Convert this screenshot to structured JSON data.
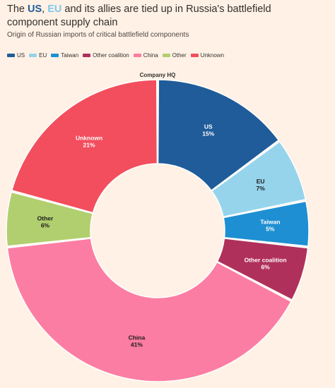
{
  "header": {
    "title_prefix": "The ",
    "title_us": "US",
    "title_sep": ", ",
    "title_eu": "EU",
    "title_suffix": " and its allies are tied up in Russia's battlefield component supply chain",
    "subtitle": "Origin of Russian imports of critical battlefield components"
  },
  "colors": {
    "title_us": "#1F5C99",
    "title_eu": "#7FC8E8"
  },
  "chart_data": {
    "type": "pie",
    "variant": "donut",
    "title": "The US, EU and its allies are tied up in Russia's battlefield component supply chain",
    "subtitle": "Origin of Russian imports of critical battlefield components",
    "annotation": "Company HQ",
    "legend_position": "top-left",
    "slices": [
      {
        "name": "US",
        "value": 15,
        "label": "15%",
        "color": "#1F5C99",
        "label_dark": false
      },
      {
        "name": "EU",
        "value": 7,
        "label": "7%",
        "color": "#96D4EC",
        "label_dark": true
      },
      {
        "name": "Taiwan",
        "value": 5,
        "label": "5%",
        "color": "#1E8FD2",
        "label_dark": false
      },
      {
        "name": "Other coalition",
        "value": 6,
        "label": "6%",
        "color": "#B0305C",
        "label_dark": false
      },
      {
        "name": "China",
        "value": 41,
        "label": "41%",
        "color": "#FC7DA3",
        "label_dark": true
      },
      {
        "name": "Other",
        "value": 6,
        "label": "6%",
        "color": "#B1CF6E",
        "label_dark": true
      },
      {
        "name": "Unknown",
        "value": 21,
        "label": "21%",
        "color": "#F24E5D",
        "label_dark": false
      }
    ]
  }
}
